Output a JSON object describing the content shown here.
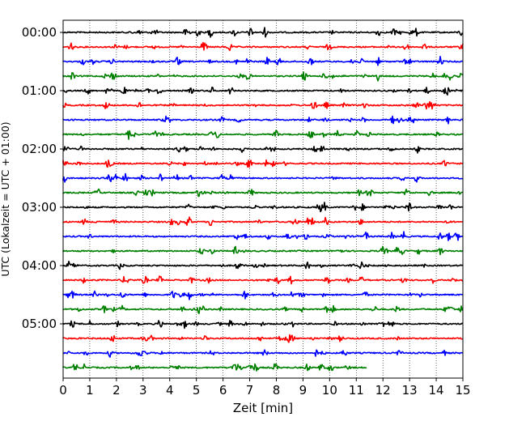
{
  "chart_data": {
    "type": "line",
    "title": "",
    "xlabel": "Zeit  [min]",
    "ylabel": "UTC (Lokalzeit = UTC + 01:00)",
    "xlim": [
      0,
      15
    ],
    "x_ticks": [
      0,
      1,
      2,
      3,
      4,
      5,
      6,
      7,
      8,
      9,
      10,
      11,
      12,
      13,
      14,
      15
    ],
    "x_tick_labels": [
      "0",
      "1",
      "2",
      "3",
      "4",
      "5",
      "6",
      "7",
      "8",
      "9",
      "10",
      "11",
      "12",
      "13",
      "14",
      "15"
    ],
    "y_tick_labels": [
      "00:00",
      "01:00",
      "02:00",
      "03:00",
      "04:00",
      "05:00"
    ],
    "rows_per_hour": 4,
    "row_interval_minutes": 15,
    "vertical_grid": "dotted",
    "trace_colors": [
      "#000000",
      "#ff0000",
      "#0000ff",
      "#008000"
    ],
    "rows": [
      {
        "start": "00:00",
        "end_min": 15
      },
      {
        "start": "00:15",
        "end_min": 15
      },
      {
        "start": "00:30",
        "end_min": 15
      },
      {
        "start": "00:45",
        "end_min": 15
      },
      {
        "start": "01:00",
        "end_min": 15
      },
      {
        "start": "01:15",
        "end_min": 15
      },
      {
        "start": "01:30",
        "end_min": 15
      },
      {
        "start": "01:45",
        "end_min": 15
      },
      {
        "start": "02:00",
        "end_min": 15
      },
      {
        "start": "02:15",
        "end_min": 15
      },
      {
        "start": "02:30",
        "end_min": 15
      },
      {
        "start": "02:45",
        "end_min": 15
      },
      {
        "start": "03:00",
        "end_min": 15
      },
      {
        "start": "03:15",
        "end_min": 15
      },
      {
        "start": "03:30",
        "end_min": 15
      },
      {
        "start": "03:45",
        "end_min": 15
      },
      {
        "start": "04:00",
        "end_min": 15
      },
      {
        "start": "04:15",
        "end_min": 15
      },
      {
        "start": "04:30",
        "end_min": 15
      },
      {
        "start": "04:45",
        "end_min": 15
      },
      {
        "start": "05:00",
        "end_min": 15
      },
      {
        "start": "05:15",
        "end_min": 15
      },
      {
        "start": "05:30",
        "end_min": 15
      },
      {
        "start": "05:45",
        "end_min": 11.4
      }
    ]
  }
}
